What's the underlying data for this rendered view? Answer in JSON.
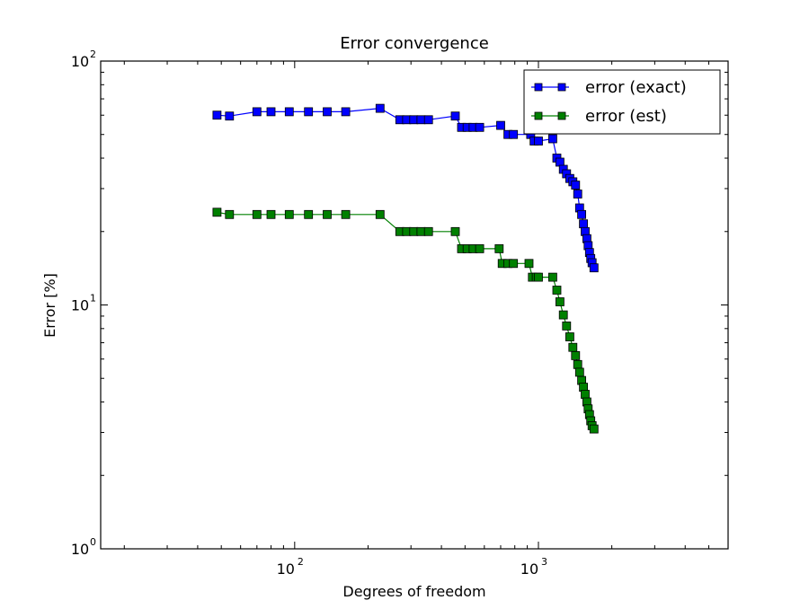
{
  "chart_data": {
    "type": "line",
    "title": "Error convergence",
    "xlabel": "Degrees of freedom",
    "ylabel": "Error [%]",
    "xscale": "log",
    "yscale": "log",
    "xlim": [
      16,
      6000
    ],
    "ylim": [
      1,
      100
    ],
    "x_ticks": [
      {
        "value": 100,
        "base": "10",
        "exp": "2"
      },
      {
        "value": 1000,
        "base": "10",
        "exp": "3"
      }
    ],
    "y_ticks": [
      {
        "value": 1,
        "base": "10",
        "exp": "0"
      },
      {
        "value": 10,
        "base": "10",
        "exp": "1"
      },
      {
        "value": 100,
        "base": "10",
        "exp": "2"
      }
    ],
    "grid": false,
    "legend_position": "top-right",
    "marker": "square",
    "series": [
      {
        "name": "error (exact)",
        "color": "#0000ff",
        "x": [
          48,
          54,
          70,
          80,
          95,
          114,
          136,
          162,
          224,
          270,
          288,
          308,
          330,
          354,
          456,
          484,
          510,
          540,
          574,
          700,
          750,
          790,
          930,
          960,
          1000,
          1145,
          1190,
          1225,
          1265,
          1305,
          1345,
          1385,
          1420,
          1450,
          1475,
          1505,
          1530,
          1555,
          1580,
          1600,
          1620,
          1640,
          1660,
          1690
        ],
        "y": [
          60,
          59.5,
          62,
          62,
          62,
          62,
          62,
          62,
          64,
          57.5,
          57.5,
          57.5,
          57.5,
          57.5,
          59.5,
          53.5,
          53.5,
          53.5,
          53.5,
          54.5,
          50,
          50,
          50,
          47,
          47,
          48,
          40,
          38.5,
          36,
          34.5,
          33,
          32,
          31,
          28.5,
          25,
          23.5,
          21.5,
          20,
          18.7,
          17.5,
          16.4,
          15.5,
          14.9,
          14.2
        ]
      },
      {
        "name": "error (est)",
        "color": "#008000",
        "x": [
          48,
          54,
          70,
          80,
          95,
          114,
          136,
          162,
          224,
          270,
          288,
          308,
          330,
          354,
          456,
          484,
          510,
          540,
          574,
          690,
          710,
          750,
          790,
          915,
          945,
          980,
          1000,
          1145,
          1190,
          1225,
          1265,
          1305,
          1345,
          1385,
          1420,
          1450,
          1475,
          1505,
          1530,
          1555,
          1580,
          1600,
          1620,
          1640,
          1660,
          1690
        ],
        "y": [
          24,
          23.5,
          23.5,
          23.5,
          23.5,
          23.5,
          23.5,
          23.5,
          23.5,
          20,
          20,
          20,
          20,
          20,
          20,
          17,
          17,
          17,
          17,
          17,
          14.8,
          14.8,
          14.8,
          14.8,
          13,
          13,
          13,
          13,
          11.5,
          10.3,
          9.1,
          8.2,
          7.4,
          6.7,
          6.2,
          5.7,
          5.3,
          4.9,
          4.6,
          4.3,
          4.0,
          3.75,
          3.55,
          3.35,
          3.2,
          3.1
        ]
      }
    ]
  }
}
